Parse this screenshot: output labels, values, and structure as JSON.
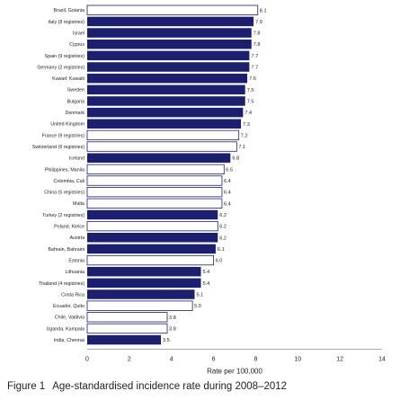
{
  "chart_data": {
    "type": "bar",
    "orientation": "horizontal",
    "title": "",
    "xlabel": "Rate per 100,000",
    "ylabel": "",
    "xlim": [
      0,
      14
    ],
    "x_ticks": [
      "0",
      "2",
      "4",
      "6",
      "8",
      "10",
      "12",
      "14"
    ],
    "grid": false,
    "bar_colors": {
      "filled": "#1b1f6e",
      "outlined": "#ffffff",
      "outline": "#1b1f6e"
    },
    "categories": [
      "Brazil, Goiania",
      "Italy (8 registries)",
      "Israel",
      "Cyprus",
      "Spain (9 registries)",
      "Germany (2 registries)",
      "Kuwait: Kuwaiti",
      "Sweden",
      "Bulgaria",
      "Denmark",
      "United Kingdom",
      "France (9 registries)",
      "Switzerland (6 registries)",
      "Iceland",
      "Philippines, Manila",
      "Colombia, Cali",
      "China (5 registries)",
      "Malta",
      "Turkey (2 registries)",
      "Poland, Kielce",
      "Austria",
      "Bahrain, Bahraini",
      "Estonia",
      "Lithuania",
      "Thailand (4 registries)",
      "Costa Rica",
      "Ecuador, Quito",
      "Chile, Valdivia",
      "Uganda, Kampala",
      "India, Chennai"
    ],
    "values": [
      8.1,
      7.9,
      7.8,
      7.8,
      7.7,
      7.7,
      7.6,
      7.5,
      7.5,
      7.4,
      7.3,
      7.2,
      7.1,
      6.8,
      6.5,
      6.4,
      6.4,
      6.4,
      6.2,
      6.2,
      6.2,
      6.1,
      6.0,
      5.4,
      5.4,
      5.1,
      5.0,
      3.8,
      3.8,
      3.5
    ],
    "value_labels": [
      "8.1",
      "7.9",
      "7.8",
      "7.8",
      "7.7",
      "7.7",
      "7.6",
      "7.5",
      "7.5",
      "7.4",
      "7.3",
      "7.2",
      "7.1",
      "6.8",
      "6.5",
      "6.4",
      "6.4",
      "6.4",
      "6.2",
      "6.2",
      "6.2",
      "6.1",
      "6.0",
      "5.4",
      "5.4",
      "5.1",
      "5.0",
      "3.8",
      "3.8",
      "3.5"
    ],
    "filled": [
      false,
      true,
      true,
      true,
      true,
      true,
      true,
      true,
      true,
      true,
      true,
      false,
      false,
      true,
      false,
      false,
      false,
      false,
      true,
      false,
      true,
      true,
      false,
      true,
      true,
      true,
      false,
      false,
      false,
      true
    ]
  },
  "caption": {
    "label": "Figure 1",
    "text": "Age-standardised incidence rate during 2008–2012"
  }
}
